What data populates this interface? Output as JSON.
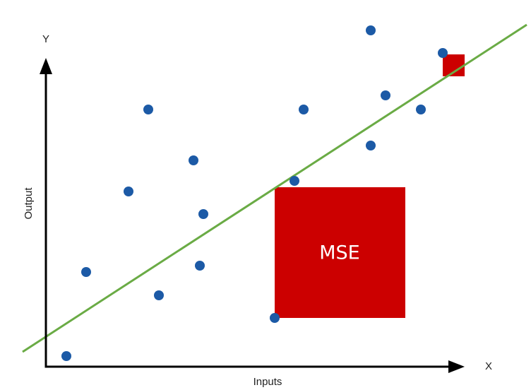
{
  "labels": {
    "y_axis_letter": "Y",
    "x_axis_letter": "X",
    "y_axis_title": "Output",
    "x_axis_title": "Inputs",
    "mse_label": "MSE"
  },
  "colors": {
    "axis": "#000000",
    "point": "#1c5aa6",
    "regression_line": "#6aab45",
    "error_square": "#cc0000",
    "background": "#ffffff"
  }
}
